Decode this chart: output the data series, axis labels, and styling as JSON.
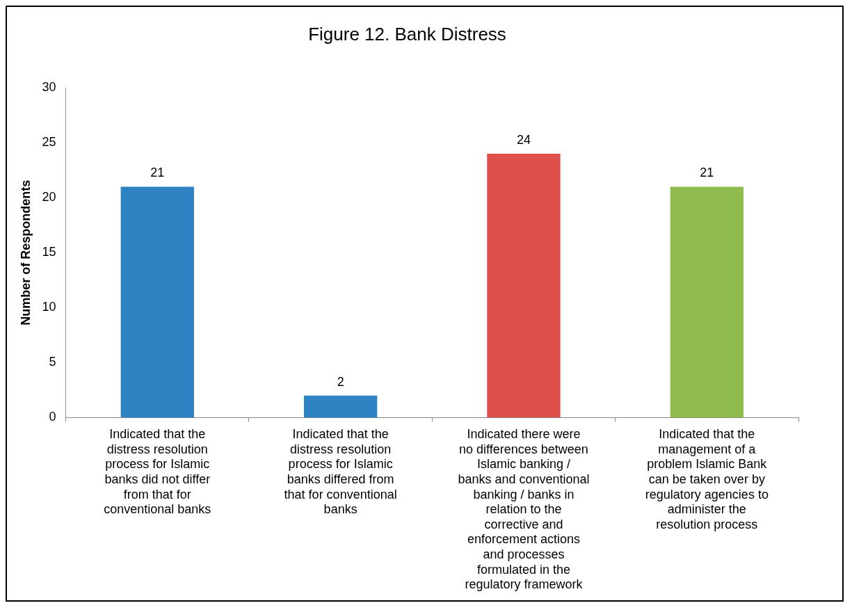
{
  "chart_data": {
    "type": "bar",
    "title": "Figure 12. Bank Distress",
    "ylabel": "Number of Respondents",
    "categories": [
      "Indicated that the distress resolution process for Islamic banks did not differ from that for conventional banks",
      "Indicated that the distress resolution process for Islamic banks differed from that for conventional banks",
      "Indicated there were no differences between Islamic banking / banks and conventional banking / banks in relation to the corrective and enforcement actions and processes formulated in the regulatory framework",
      "Indicated that the management of a problem Islamic Bank can be taken over by regulatory agencies to administer the resolution process"
    ],
    "values": [
      21,
      2,
      24,
      21
    ],
    "colors": [
      "#2e83c2",
      "#2e83c2",
      "#df4f4c",
      "#8fbb4f"
    ],
    "ylim": [
      0,
      30
    ],
    "yticks": [
      0,
      5,
      10,
      15,
      20,
      25,
      30
    ],
    "grid": false,
    "legend": false,
    "data_labels": true
  }
}
